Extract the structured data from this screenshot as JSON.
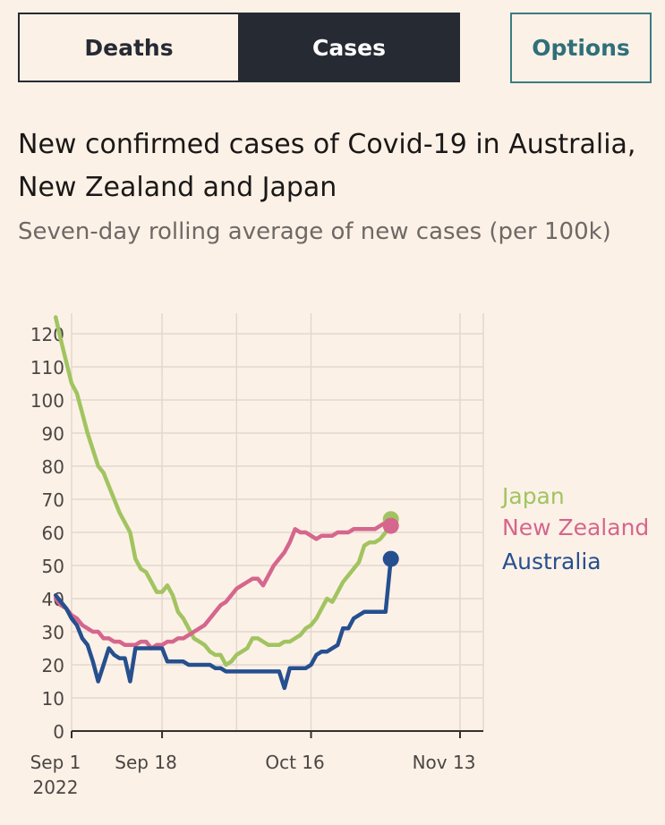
{
  "tabs": {
    "deaths": "Deaths",
    "cases": "Cases",
    "active": "cases"
  },
  "options_label": "Options",
  "title": "New confirmed cases of Covid-19 in Australia, New Zealand and Japan",
  "subtitle": "Seven-day rolling average of new cases (per 100k)",
  "colors": {
    "background": "#fcf1e7",
    "grid": "#e3d8cd",
    "axis": "#33302e"
  },
  "chart_data": {
    "type": "line",
    "title": "New confirmed cases of Covid-19 in Australia, New Zealand and Japan",
    "ylabel": "Seven-day rolling average of new cases (per 100k)",
    "ylim": [
      0,
      125
    ],
    "yticks": [
      0,
      10,
      20,
      30,
      40,
      50,
      60,
      70,
      80,
      90,
      100,
      110,
      120
    ],
    "xlim": [
      0,
      75
    ],
    "xticks": [
      {
        "day": 0,
        "label": "Sep 1",
        "sublabel": "2022"
      },
      {
        "day": 17,
        "label": "Sep 18",
        "sublabel": ""
      },
      {
        "day": 45,
        "label": "Oct 16",
        "sublabel": ""
      },
      {
        "day": 73,
        "label": "Nov 13",
        "sublabel": ""
      }
    ],
    "series": [
      {
        "name": "Japan",
        "color": "#a1c460",
        "points": [
          [
            -3,
            125
          ],
          [
            -2,
            118
          ],
          [
            0,
            105
          ],
          [
            1,
            102
          ],
          [
            2,
            96
          ],
          [
            3,
            90
          ],
          [
            4,
            85
          ],
          [
            5,
            80
          ],
          [
            6,
            78
          ],
          [
            7,
            74
          ],
          [
            8,
            70
          ],
          [
            9,
            66
          ],
          [
            10,
            63
          ],
          [
            11,
            60
          ],
          [
            12,
            52
          ],
          [
            13,
            49
          ],
          [
            14,
            48
          ],
          [
            15,
            45
          ],
          [
            16,
            42
          ],
          [
            17,
            42
          ],
          [
            18,
            44
          ],
          [
            19,
            41
          ],
          [
            20,
            36
          ],
          [
            21,
            34
          ],
          [
            22,
            31
          ],
          [
            23,
            28
          ],
          [
            24,
            27
          ],
          [
            25,
            26
          ],
          [
            26,
            24
          ],
          [
            27,
            23
          ],
          [
            28,
            23
          ],
          [
            29,
            20
          ],
          [
            30,
            21
          ],
          [
            31,
            23
          ],
          [
            32,
            24
          ],
          [
            33,
            25
          ],
          [
            34,
            28
          ],
          [
            35,
            28
          ],
          [
            36,
            27
          ],
          [
            37,
            26
          ],
          [
            38,
            26
          ],
          [
            39,
            26
          ],
          [
            40,
            27
          ],
          [
            41,
            27
          ],
          [
            42,
            28
          ],
          [
            43,
            29
          ],
          [
            44,
            31
          ],
          [
            45,
            32
          ],
          [
            46,
            34
          ],
          [
            47,
            37
          ],
          [
            48,
            40
          ],
          [
            49,
            39
          ],
          [
            50,
            42
          ],
          [
            51,
            45
          ],
          [
            52,
            47
          ],
          [
            53,
            49
          ],
          [
            54,
            51
          ],
          [
            55,
            56
          ],
          [
            56,
            57
          ],
          [
            57,
            57
          ],
          [
            58,
            58
          ],
          [
            59,
            60
          ],
          [
            60,
            64
          ]
        ]
      },
      {
        "name": "New Zealand",
        "color": "#d5668d",
        "points": [
          [
            -3,
            40
          ],
          [
            -2,
            38
          ],
          [
            -1,
            37
          ],
          [
            0,
            35
          ],
          [
            1,
            34
          ],
          [
            2,
            32
          ],
          [
            3,
            31
          ],
          [
            4,
            30
          ],
          [
            5,
            30
          ],
          [
            6,
            28
          ],
          [
            7,
            28
          ],
          [
            8,
            27
          ],
          [
            9,
            27
          ],
          [
            10,
            26
          ],
          [
            11,
            26
          ],
          [
            12,
            26
          ],
          [
            13,
            27
          ],
          [
            14,
            27
          ],
          [
            15,
            25
          ],
          [
            16,
            26
          ],
          [
            17,
            26
          ],
          [
            18,
            27
          ],
          [
            19,
            27
          ],
          [
            20,
            28
          ],
          [
            21,
            28
          ],
          [
            22,
            29
          ],
          [
            23,
            30
          ],
          [
            24,
            31
          ],
          [
            25,
            32
          ],
          [
            26,
            34
          ],
          [
            27,
            36
          ],
          [
            28,
            38
          ],
          [
            29,
            39
          ],
          [
            30,
            41
          ],
          [
            31,
            43
          ],
          [
            32,
            44
          ],
          [
            33,
            45
          ],
          [
            34,
            46
          ],
          [
            35,
            46
          ],
          [
            36,
            44
          ],
          [
            37,
            47
          ],
          [
            38,
            50
          ],
          [
            39,
            52
          ],
          [
            40,
            54
          ],
          [
            41,
            57
          ],
          [
            42,
            61
          ],
          [
            43,
            60
          ],
          [
            44,
            60
          ],
          [
            45,
            59
          ],
          [
            46,
            58
          ],
          [
            47,
            59
          ],
          [
            48,
            59
          ],
          [
            49,
            59
          ],
          [
            50,
            60
          ],
          [
            51,
            60
          ],
          [
            52,
            60
          ],
          [
            53,
            61
          ],
          [
            54,
            61
          ],
          [
            55,
            61
          ],
          [
            56,
            61
          ],
          [
            57,
            61
          ],
          [
            58,
            62
          ],
          [
            59,
            63
          ],
          [
            60,
            62
          ]
        ]
      },
      {
        "name": "Australia",
        "color": "#264f8f",
        "points": [
          [
            -3,
            41
          ],
          [
            -2,
            39
          ],
          [
            -1,
            37
          ],
          [
            0,
            34
          ],
          [
            1,
            32
          ],
          [
            2,
            28
          ],
          [
            3,
            26
          ],
          [
            4,
            21
          ],
          [
            5,
            15
          ],
          [
            6,
            20
          ],
          [
            7,
            25
          ],
          [
            8,
            23
          ],
          [
            9,
            22
          ],
          [
            10,
            22
          ],
          [
            11,
            15
          ],
          [
            12,
            25
          ],
          [
            13,
            25
          ],
          [
            14,
            25
          ],
          [
            15,
            25
          ],
          [
            16,
            25
          ],
          [
            17,
            25
          ],
          [
            18,
            21
          ],
          [
            19,
            21
          ],
          [
            20,
            21
          ],
          [
            21,
            21
          ],
          [
            22,
            20
          ],
          [
            23,
            20
          ],
          [
            24,
            20
          ],
          [
            25,
            20
          ],
          [
            26,
            20
          ],
          [
            27,
            19
          ],
          [
            28,
            19
          ],
          [
            29,
            18
          ],
          [
            30,
            18
          ],
          [
            31,
            18
          ],
          [
            32,
            18
          ],
          [
            33,
            18
          ],
          [
            34,
            18
          ],
          [
            35,
            18
          ],
          [
            36,
            18
          ],
          [
            37,
            18
          ],
          [
            38,
            18
          ],
          [
            39,
            18
          ],
          [
            40,
            13
          ],
          [
            41,
            19
          ],
          [
            42,
            19
          ],
          [
            43,
            19
          ],
          [
            44,
            19
          ],
          [
            45,
            20
          ],
          [
            46,
            23
          ],
          [
            47,
            24
          ],
          [
            48,
            24
          ],
          [
            49,
            25
          ],
          [
            50,
            26
          ],
          [
            51,
            31
          ],
          [
            52,
            31
          ],
          [
            53,
            34
          ],
          [
            54,
            35
          ],
          [
            55,
            36
          ],
          [
            56,
            36
          ],
          [
            57,
            36
          ],
          [
            58,
            36
          ],
          [
            59,
            36
          ],
          [
            60,
            52
          ]
        ]
      }
    ],
    "legend": [
      "Japan",
      "New Zealand",
      "Australia"
    ],
    "legend_position": "right"
  }
}
